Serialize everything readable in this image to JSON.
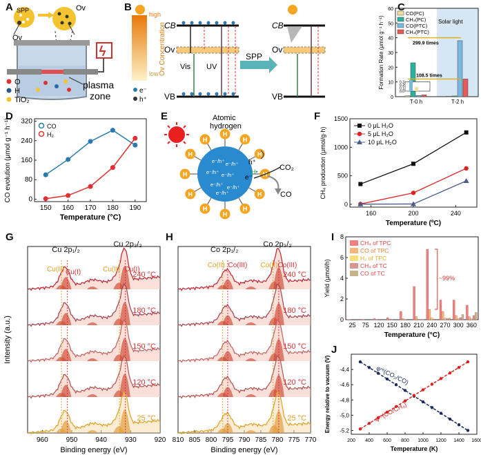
{
  "panels": {
    "A": {
      "label": "A",
      "spp": "SPP",
      "ov1": "Ov",
      "ov2": "Ov",
      "legend_o": "O",
      "legend_h": "H",
      "legend_tio2": "TiO₂",
      "plasma": "plasma",
      "zone": "zone"
    },
    "B": {
      "label": "B",
      "high": "high",
      "low": "low",
      "axis": "Ov Concentration",
      "cb1": "CB",
      "ov1": "Ov",
      "vb1": "VB",
      "cb2": "CB",
      "ov2": "Ov",
      "vb2": "VB",
      "vis": "Vis",
      "uv": "UV",
      "spp": "SPP",
      "e": "e⁻",
      "h": "h⁺"
    },
    "C": {
      "label": "C",
      "solar": "Solar light",
      "times1": "299.9 times",
      "times2": "108.5 times",
      "colors": {
        "co_pc": "#f2dfa0",
        "ch4_pc": "#2ab39a",
        "co_ptc": "#7ab8e0",
        "ch4_ptc": "#e85a5a"
      }
    },
    "D": {
      "label": "D"
    },
    "E": {
      "label": "E",
      "title1": "Atomic",
      "title2": "hydrogen",
      "hplus": "h⁺",
      "h": "H",
      "hdot": "H•",
      "e": "e⁻",
      "eh": "e⁻/h⁺",
      "co2": "CO₂",
      "co": "CO"
    },
    "F": {
      "label": "F"
    },
    "G": {
      "label": "G",
      "cu12": "Cu 2p₁/₂",
      "cu32": "Cu 2p₃/₂",
      "cu2a": "Cu(II)",
      "cu1a": "Cu(I)",
      "cu2b": "Cu(II)",
      "cu1b": "Cu(I)",
      "temps": [
        "240 °C",
        "180 °C",
        "150 °C",
        "120 °C",
        "25 °C"
      ],
      "xlabel": "Binding energy (eV)",
      "ylabel": "Intensity (a.u.)",
      "xticks": [
        "960",
        "950",
        "940",
        "930",
        "920"
      ]
    },
    "H": {
      "label": "H",
      "co12": "Co 2p₁/₂",
      "co32": "Co 2p₃/₂",
      "co2a": "Co(II)",
      "co3a": "Co(III)",
      "co2b": "Co(II)",
      "co3b": "Co(III)",
      "temps": [
        "240 °C",
        "180 °C",
        "150 °C",
        "120 °C",
        "25 °C"
      ],
      "xlabel": "Binding energy (eV)",
      "xticks": [
        "810",
        "805",
        "800",
        "795",
        "790",
        "785",
        "780",
        "775",
        "770"
      ]
    },
    "I": {
      "label": "I",
      "annot": "~99%"
    },
    "J": {
      "label": "J",
      "curve1": "φʳᵉ(CO₂/CO)",
      "curve2": "φʳᵉ(CO/CH₄)"
    }
  },
  "chart_data": [
    {
      "id": "C",
      "type": "bar",
      "categories": [
        "T-0 h",
        "T-2 h"
      ],
      "series": [
        {
          "name": "CO(PC)",
          "values": [
            0.6,
            0.3
          ]
        },
        {
          "name": "CH4(PC)",
          "values": [
            23,
            0.5
          ]
        },
        {
          "name": "CO(PTC)",
          "values": [
            0.8,
            38
          ]
        },
        {
          "name": "CH4(PTC)",
          "values": [
            1.2,
            12
          ]
        }
      ],
      "ylabel": "Formation Rate (μmol g⁻¹ h⁻¹)",
      "yticks": [
        "0",
        "10",
        "20",
        "30",
        "40",
        "50",
        "60"
      ],
      "ylim": [
        0,
        60
      ],
      "inset_yticks": [
        "0.0",
        "0.1",
        "0.2",
        "0.3"
      ],
      "legend": [
        "CO(PC)",
        "CH₄(PC)",
        "CO(PTC)",
        "CH₄(PTC)"
      ]
    },
    {
      "id": "D",
      "type": "line",
      "x": [
        150,
        160,
        170,
        180,
        190
      ],
      "series": [
        {
          "name": "CO",
          "values": [
            100,
            163,
            237,
            283,
            222
          ],
          "color": "#2a7ab0"
        },
        {
          "name": "H2",
          "values": [
            2,
            15,
            52,
            130,
            250
          ],
          "color": "#e03030"
        }
      ],
      "legend": [
        "CO",
        "H₂"
      ],
      "xlabel": "Temperature (°C)",
      "ylabel": "CO evolution (μmol g⁻¹ h⁻¹)",
      "xlim": [
        145,
        195
      ],
      "ylim": [
        -10,
        330
      ],
      "xticks": [
        "150",
        "160",
        "170",
        "180",
        "190"
      ],
      "yticks": [
        "0",
        "80",
        "160",
        "240",
        "320"
      ]
    },
    {
      "id": "F",
      "type": "line",
      "x": [
        150,
        200,
        250
      ],
      "series": [
        {
          "name": "0 μL H₂O",
          "values": [
            355,
            710,
            1260
          ],
          "color": "#111111"
        },
        {
          "name": "5 μL H₂O",
          "values": [
            5,
            200,
            630
          ],
          "color": "#e02020"
        },
        {
          "name": "10 μL H₂O",
          "values": [
            2,
            5,
            410
          ],
          "color": "#4a5a8a"
        }
      ],
      "xlabel": "Temperature (ºC)",
      "ylabel": "CH₄ production (μmol/g·h)",
      "xlim": [
        140,
        260
      ],
      "ylim": [
        -50,
        1500
      ],
      "xticks": [
        "160",
        "200",
        "240"
      ],
      "yticks": [
        "0",
        "500",
        "1000",
        "1500"
      ]
    },
    {
      "id": "I",
      "type": "bar",
      "categories": [
        "25",
        "75",
        "120",
        "150",
        "180",
        "210",
        "240",
        "270",
        "300",
        "360"
      ],
      "series": [
        {
          "name": "CH₄ of TPC",
          "values": [
            0.02,
            0.05,
            0.1,
            0.2,
            0.8,
            3.2,
            6.8,
            1.9,
            1.9,
            1.4
          ],
          "color": "#f08080"
        },
        {
          "name": "CO  of TPC",
          "values": [
            0.01,
            0.02,
            0.03,
            0.05,
            0.1,
            0.3,
            1.0,
            0.8,
            0.4,
            0.3
          ],
          "color": "#f5b77a"
        },
        {
          "name": "H₂ of TPC",
          "values": [
            0,
            0,
            0,
            0.01,
            0.02,
            0.05,
            0.2,
            0.15,
            0.1,
            0.1
          ],
          "color": "#f7e07a"
        },
        {
          "name": "CH₄ of TC",
          "values": [
            0,
            0,
            0,
            0,
            0,
            0.02,
            0.05,
            0.1,
            0.2,
            0.4
          ],
          "color": "#d99494"
        },
        {
          "name": "CO  of TC",
          "values": [
            0,
            0,
            0,
            0,
            0,
            0.02,
            0.05,
            0.15,
            0.5,
            0.7
          ],
          "color": "#c8b48a"
        }
      ],
      "xlabel": "Temperature (°C)",
      "ylabel": "Yield (μmol/h)",
      "ylim": [
        0,
        8
      ],
      "yticks": [
        "0",
        "2",
        "4",
        "6",
        "8"
      ]
    },
    {
      "id": "J",
      "type": "line",
      "x": [
        300,
        1500
      ],
      "series": [
        {
          "name": "φʳᵉ(CO₂/CO)",
          "values": [
            -4.3,
            -5.2
          ],
          "color": "#1a2a5a"
        },
        {
          "name": "φʳᵉ(CO/CH₄)",
          "values": [
            -5.18,
            -4.3
          ],
          "color": "#e02020"
        }
      ],
      "xlabel": "Temperature (K)",
      "ylabel": "Energy relative to vacuum (V)",
      "xlim": [
        200,
        1600
      ],
      "ylim": [
        -5.25,
        -4.2
      ],
      "xticks": [
        "200",
        "400",
        "600",
        "800",
        "1000",
        "1200",
        "1400",
        "1600"
      ],
      "yticks": [
        "-4.4",
        "-4.6",
        "-4.8",
        "-5.0",
        "-5.2"
      ]
    }
  ]
}
